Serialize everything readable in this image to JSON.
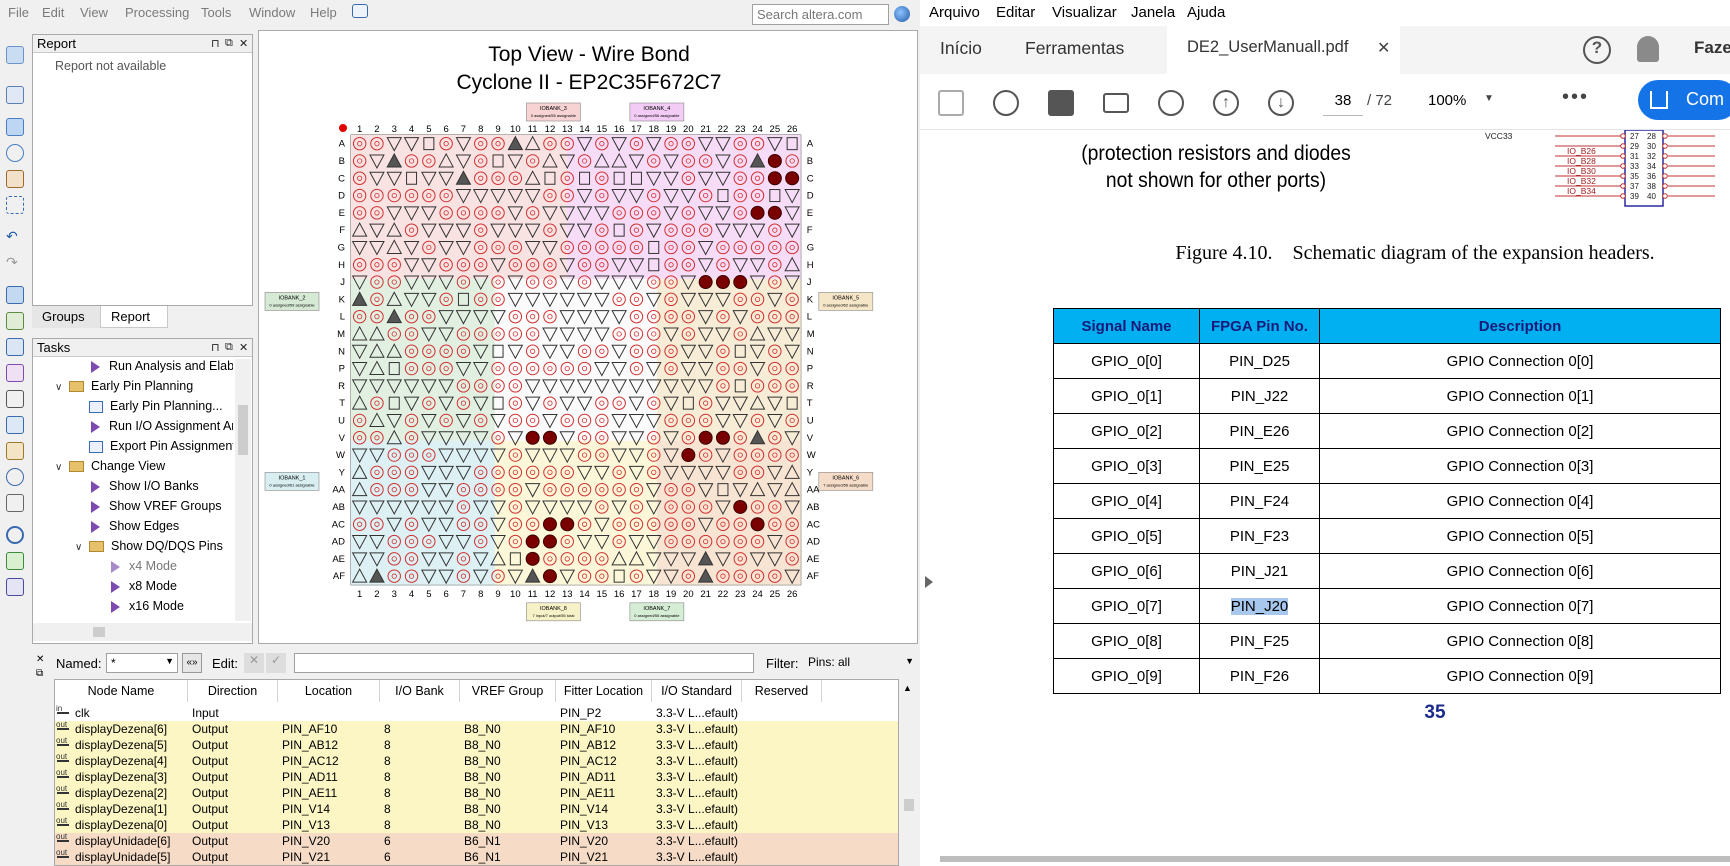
{
  "quartus": {
    "menu": [
      "File",
      "Edit",
      "View",
      "Processing",
      "Tools",
      "Window",
      "Help"
    ],
    "search_placeholder": "Search altera.com",
    "report_panel": {
      "title": "Report",
      "content": "Report not available"
    },
    "bottom_tabs": [
      "Groups",
      "Report"
    ],
    "tasks_panel": {
      "title": "Tasks",
      "items": [
        {
          "label": "Run Analysis and Elaboration",
          "kind": "task",
          "indent": 1
        },
        {
          "label": "Early Pin Planning",
          "kind": "folder",
          "indent": 0,
          "expanded": true
        },
        {
          "label": "Early Pin Planning...",
          "kind": "page",
          "indent": 1
        },
        {
          "label": "Run I/O Assignment Analysis",
          "kind": "task",
          "indent": 1
        },
        {
          "label": "Export Pin Assignments",
          "kind": "page",
          "indent": 1
        },
        {
          "label": "Change View",
          "kind": "folder",
          "indent": 0,
          "expanded": true
        },
        {
          "label": "Show I/O Banks",
          "kind": "task",
          "indent": 1
        },
        {
          "label": "Show VREF Groups",
          "kind": "task",
          "indent": 1
        },
        {
          "label": "Show Edges",
          "kind": "task",
          "indent": 1
        },
        {
          "label": "Show DQ/DQS Pins",
          "kind": "folder",
          "indent": 1,
          "expanded": true
        },
        {
          "label": "x4 Mode",
          "kind": "task-dim",
          "indent": 2
        },
        {
          "label": "x8 Mode",
          "kind": "task",
          "indent": 2
        },
        {
          "label": "x16 Mode",
          "kind": "task",
          "indent": 2
        }
      ]
    },
    "chip_view": {
      "title_line1": "Top View - Wire Bond",
      "title_line2": "Cyclone II - EP2C35F672C7",
      "columns": [
        "1",
        "2",
        "3",
        "4",
        "5",
        "6",
        "7",
        "8",
        "9",
        "10",
        "11",
        "12",
        "13",
        "14",
        "15",
        "16",
        "17",
        "18",
        "19",
        "20",
        "21",
        "22",
        "23",
        "24",
        "25",
        "26"
      ],
      "rows": [
        "A",
        "B",
        "C",
        "D",
        "E",
        "F",
        "G",
        "H",
        "J",
        "K",
        "L",
        "M",
        "N",
        "P",
        "R",
        "T",
        "U",
        "V",
        "W",
        "Y",
        "AA",
        "AB",
        "AC",
        "AD",
        "AE",
        "AF"
      ],
      "io_banks": [
        {
          "name": "IOBANK_3",
          "note": "0 assigned/55 assignable",
          "color": "#f7d3d3"
        },
        {
          "name": "IOBANK_4",
          "note": "0 assigned/56 assignable",
          "color": "#f3ccf6"
        },
        {
          "name": "IOBANK_2",
          "note": "0 assigned/59 assignable",
          "color": "#d5e9d5"
        },
        {
          "name": "IOBANK_5",
          "note": "0 assigned/62 assignable",
          "color": "#f5e6c8"
        },
        {
          "name": "IOBANK_1",
          "note": "0 assigned/61 assignable",
          "color": "#d8eef0"
        },
        {
          "name": "IOBANK_6",
          "note": "7 assigned/56 assignable",
          "color": "#f5dcc8"
        },
        {
          "name": "IOBANK_8",
          "note": "7 input/7 output/55 total",
          "color": "#f7f1c8"
        },
        {
          "name": "IOBANK_7",
          "note": "0 assigned/55 assignable",
          "color": "#d5ecd5"
        }
      ]
    },
    "filter_bar": {
      "named_label": "Named:",
      "named_value": "*",
      "edit_label": "Edit:",
      "filter_label": "Filter:",
      "filter_value": "Pins: all"
    },
    "pin_table": {
      "headers": [
        "Node Name",
        "Direction",
        "Location",
        "I/O Bank",
        "VREF Group",
        "Fitter Location",
        "I/O Standard",
        "Reserved"
      ],
      "rows": [
        {
          "dir_icon": "in",
          "name": "clk",
          "direction": "Input",
          "location": "",
          "bank": "",
          "vref": "",
          "fitter": "PIN_P2",
          "std": "3.3-V L...efault)",
          "reserved": "",
          "tint": "#ffffff"
        },
        {
          "dir_icon": "out",
          "name": "displayDezena[6]",
          "direction": "Output",
          "location": "PIN_AF10",
          "bank": "8",
          "vref": "B8_N0",
          "fitter": "PIN_AF10",
          "std": "3.3-V L...efault)",
          "reserved": "",
          "tint": "#fbf6c4"
        },
        {
          "dir_icon": "out",
          "name": "displayDezena[5]",
          "direction": "Output",
          "location": "PIN_AB12",
          "bank": "8",
          "vref": "B8_N0",
          "fitter": "PIN_AB12",
          "std": "3.3-V L...efault)",
          "reserved": "",
          "tint": "#fbf6c4"
        },
        {
          "dir_icon": "out",
          "name": "displayDezena[4]",
          "direction": "Output",
          "location": "PIN_AC12",
          "bank": "8",
          "vref": "B8_N0",
          "fitter": "PIN_AC12",
          "std": "3.3-V L...efault)",
          "reserved": "",
          "tint": "#fbf6c4"
        },
        {
          "dir_icon": "out",
          "name": "displayDezena[3]",
          "direction": "Output",
          "location": "PIN_AD11",
          "bank": "8",
          "vref": "B8_N0",
          "fitter": "PIN_AD11",
          "std": "3.3-V L...efault)",
          "reserved": "",
          "tint": "#fbf6c4"
        },
        {
          "dir_icon": "out",
          "name": "displayDezena[2]",
          "direction": "Output",
          "location": "PIN_AE11",
          "bank": "8",
          "vref": "B8_N0",
          "fitter": "PIN_AE11",
          "std": "3.3-V L...efault)",
          "reserved": "",
          "tint": "#fbf6c4"
        },
        {
          "dir_icon": "out",
          "name": "displayDezena[1]",
          "direction": "Output",
          "location": "PIN_V14",
          "bank": "8",
          "vref": "B8_N0",
          "fitter": "PIN_V14",
          "std": "3.3-V L...efault)",
          "reserved": "",
          "tint": "#fbf6c4"
        },
        {
          "dir_icon": "out",
          "name": "displayDezena[0]",
          "direction": "Output",
          "location": "PIN_V13",
          "bank": "8",
          "vref": "B8_N0",
          "fitter": "PIN_V13",
          "std": "3.3-V L...efault)",
          "reserved": "",
          "tint": "#fbf6c4"
        },
        {
          "dir_icon": "out",
          "name": "displayUnidade[6]",
          "direction": "Output",
          "location": "PIN_V20",
          "bank": "6",
          "vref": "B6_N1",
          "fitter": "PIN_V20",
          "std": "3.3-V L...efault)",
          "reserved": "",
          "tint": "#f6dcc6"
        },
        {
          "dir_icon": "out",
          "name": "displayUnidade[5]",
          "direction": "Output",
          "location": "PIN_V21",
          "bank": "6",
          "vref": "B6_N1",
          "fitter": "PIN_V21",
          "std": "3.3-V L...efault)",
          "reserved": "",
          "tint": "#f6dcc6"
        }
      ]
    }
  },
  "acrobat": {
    "menu": [
      "Arquivo",
      "Editar",
      "Visualizar",
      "Janela",
      "Ajuda"
    ],
    "tabs": [
      "Início",
      "Ferramentas",
      "DE2_UserManuall.pdf"
    ],
    "current_page": "38",
    "total_pages": "/ 72",
    "zoom": "100%",
    "share_button": "Com",
    "fazer_label": "Faze",
    "doc": {
      "note_line1": "(protection resistors and diodes",
      "note_line2": "not shown for other ports)",
      "schematic_labels": [
        "VCC33",
        "IO_B26",
        "IO_B28",
        "IO_B30",
        "IO_B32",
        "IO_B34"
      ],
      "connector_pins_left": [
        "27",
        "29",
        "31",
        "33",
        "35",
        "37",
        "39"
      ],
      "connector_pins_right": [
        "28",
        "30",
        "32",
        "34",
        "36",
        "38",
        "40"
      ],
      "figure_caption": "Figure 4.10. Schematic diagram of the expansion headers.",
      "table_headers": [
        "Signal Name",
        "FPGA Pin No.",
        "Description"
      ],
      "table_rows": [
        [
          "GPIO_0[0]",
          "PIN_D25",
          "GPIO Connection 0[0]"
        ],
        [
          "GPIO_0[1]",
          "PIN_J22",
          "GPIO Connection 0[1]"
        ],
        [
          "GPIO_0[2]",
          "PIN_E26",
          "GPIO Connection 0[2]"
        ],
        [
          "GPIO_0[3]",
          "PIN_E25",
          "GPIO Connection 0[3]"
        ],
        [
          "GPIO_0[4]",
          "PIN_F24",
          "GPIO Connection 0[4]"
        ],
        [
          "GPIO_0[5]",
          "PIN_F23",
          "GPIO Connection 0[5]"
        ],
        [
          "GPIO_0[6]",
          "PIN_J21",
          "GPIO Connection 0[6]"
        ],
        [
          "GPIO_0[7]",
          "PIN_J20",
          "GPIO Connection 0[7]"
        ],
        [
          "GPIO_0[8]",
          "PIN_F25",
          "GPIO Connection 0[8]"
        ],
        [
          "GPIO_0[9]",
          "PIN_F26",
          "GPIO Connection 0[9]"
        ]
      ],
      "highlighted_cell": "PIN_J20",
      "page_number": "35"
    }
  }
}
